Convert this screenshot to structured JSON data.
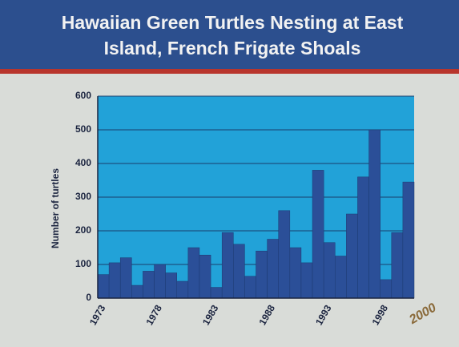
{
  "chart_data": {
    "type": "bar",
    "title": "Hawaiian Green Turtles Nesting at East Island, French Frigate Shoals",
    "y_label": "Number of turtles",
    "annotation": "2000",
    "categories": [
      "1973",
      null,
      null,
      null,
      null,
      "1978",
      null,
      null,
      null,
      null,
      "1983",
      null,
      null,
      null,
      null,
      "1988",
      null,
      null,
      null,
      null,
      "1993",
      null,
      null,
      null,
      null,
      "1998",
      null,
      null
    ],
    "values": [
      70,
      105,
      120,
      38,
      80,
      100,
      75,
      50,
      150,
      128,
      32,
      195,
      160,
      65,
      140,
      175,
      260,
      150,
      105,
      380,
      165,
      125,
      250,
      360,
      500,
      55,
      195,
      345
    ],
    "color": "#2b4f98",
    "plot_color": "#22a2d8",
    "ylim": [
      0,
      600
    ],
    "yticks": [
      0,
      100,
      200,
      300,
      400,
      500,
      600
    ],
    "grid": true
  }
}
